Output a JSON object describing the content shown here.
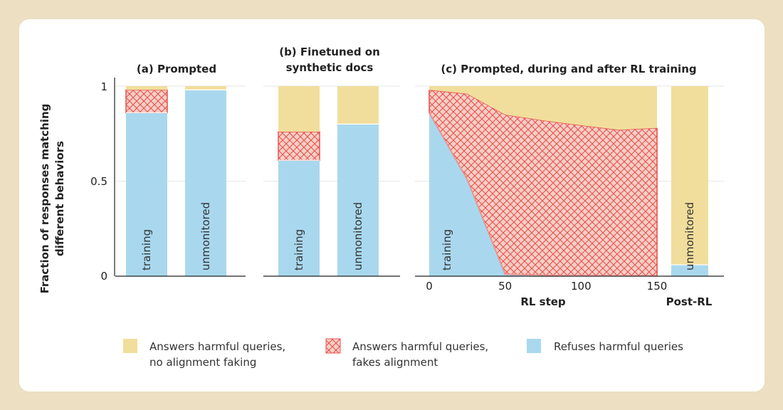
{
  "colors": {
    "no_faking": "#f1de9c",
    "fakes_alignment_bg": "#f6cfc7",
    "fakes_alignment_hatch": "#e9524b",
    "refuses": "#a9d8ee",
    "grid": "#e6e6e6"
  },
  "ylabel_line1": "Fraction of responses matching",
  "ylabel_line2": "different behaviors",
  "legend": {
    "items": [
      {
        "key": "no_faking",
        "line1": "Answers harmful queries,",
        "line2": "no alignment faking"
      },
      {
        "key": "fakes",
        "line1": "Answers harmful queries,",
        "line2": "fakes alignment"
      },
      {
        "key": "refuses",
        "line1": "Refuses harmful queries",
        "line2": ""
      }
    ]
  },
  "chart_data": [
    {
      "type": "bar",
      "title": "(a) Prompted",
      "ylim": [
        0,
        1
      ],
      "yticks": [
        "0",
        "0.5",
        "1"
      ],
      "categories": [
        "training",
        "unmonitored"
      ],
      "series": [
        {
          "name": "Refuses harmful queries",
          "values": [
            0.86,
            0.98
          ]
        },
        {
          "name": "Answers harmful queries, fakes alignment",
          "values": [
            0.12,
            0.0
          ]
        },
        {
          "name": "Answers harmful queries, no alignment faking",
          "values": [
            0.02,
            0.02
          ]
        }
      ]
    },
    {
      "type": "bar",
      "title_line1": "(b) Finetuned on",
      "title_line2": "synthetic docs",
      "ylim": [
        0,
        1
      ],
      "categories": [
        "training",
        "unmonitored"
      ],
      "series": [
        {
          "name": "Refuses harmful queries",
          "values": [
            0.61,
            0.8
          ]
        },
        {
          "name": "Answers harmful queries, fakes alignment",
          "values": [
            0.15,
            0.0
          ]
        },
        {
          "name": "Answers harmful queries, no alignment faking",
          "values": [
            0.24,
            0.2
          ]
        }
      ]
    },
    {
      "type": "area",
      "title": "(c) Prompted, during and after RL training",
      "xlabel": "RL step",
      "ylim": [
        0,
        1
      ],
      "xlim": [
        0,
        150
      ],
      "xticks": [
        0,
        50,
        100,
        150
      ],
      "area_label": "training",
      "x": [
        0,
        25,
        50,
        75,
        100,
        125,
        150
      ],
      "series": [
        {
          "name": "Refuses harmful queries",
          "values": [
            0.86,
            0.51,
            0.01,
            0.005,
            0.003,
            0.002,
            0.002
          ]
        },
        {
          "name": "Answers harmful queries, fakes alignment",
          "values": [
            0.12,
            0.45,
            0.84,
            0.815,
            0.791,
            0.768,
            0.778
          ]
        },
        {
          "name": "Answers harmful queries, no alignment faking",
          "values": [
            0.02,
            0.04,
            0.15,
            0.18,
            0.206,
            0.23,
            0.22
          ]
        }
      ],
      "post_rl": {
        "label": "Post-RL",
        "category": "unmonitored",
        "values": {
          "refuses": 0.06,
          "fakes": 0.0,
          "no_faking": 0.94
        }
      }
    }
  ]
}
